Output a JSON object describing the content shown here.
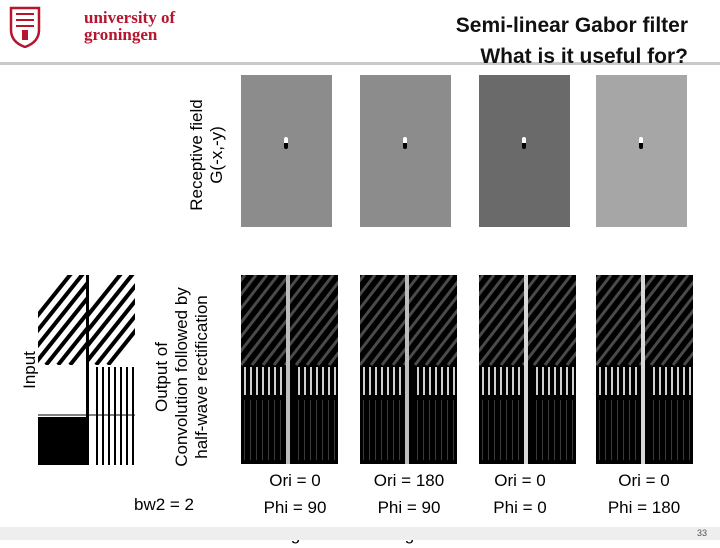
{
  "header": {
    "logo_line1": "university of",
    "logo_line2": "groningen",
    "title_line1": "Semi-linear Gabor filter",
    "title_line2": "What is it useful for?"
  },
  "labels": {
    "input": "Input",
    "output_line1": "Output of",
    "output_line2": "Convolution followed by",
    "output_line3": "half-wave rectification",
    "rf_line1": "Receptive field",
    "rf_line2": "G(-x,-y)",
    "bw2": "bw2 = 2"
  },
  "panels": [
    {
      "ori": "Ori = 0",
      "phi": "Phi = 90",
      "kind": "edges",
      "rf_gray": "#8c8c8c"
    },
    {
      "ori": "Ori = 180",
      "phi": "Phi = 90",
      "kind": "edges",
      "rf_gray": "#8c8c8c"
    },
    {
      "ori": "Ori = 0",
      "phi": "Phi = 0",
      "kind": "lines",
      "rf_gray": "#6a6a6a"
    },
    {
      "ori": "Ori = 0",
      "phi": "Phi = 180",
      "kind": "lines",
      "rf_gray": "#a6a6a6"
    }
  ],
  "page_number": "33"
}
